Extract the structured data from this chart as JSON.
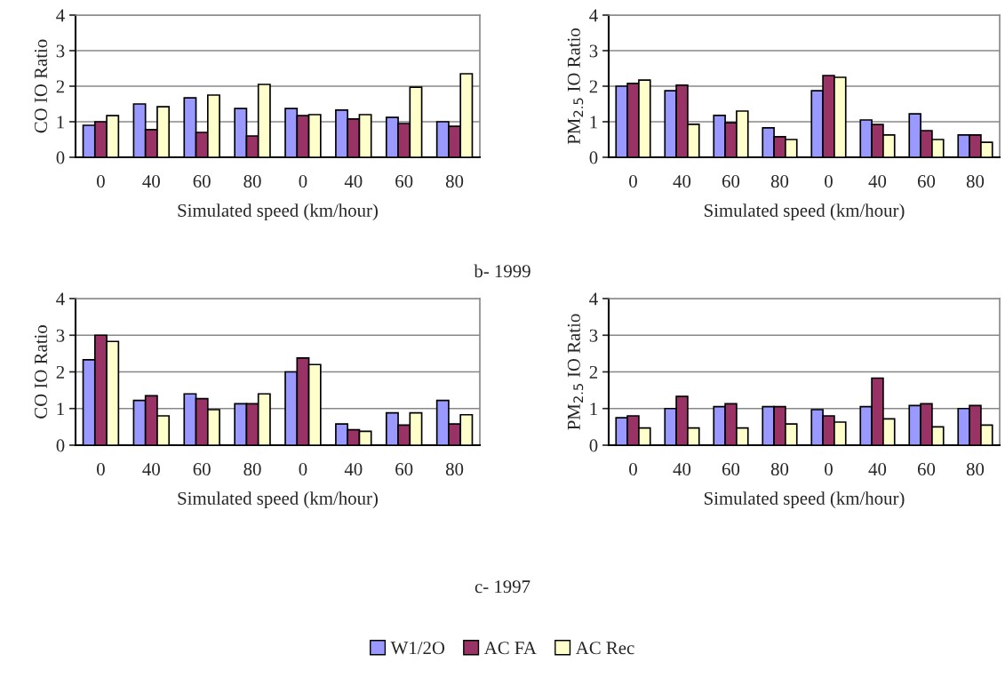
{
  "chart_data": [
    {
      "type": "bar",
      "categories": [
        "0",
        "40",
        "60",
        "80",
        "0",
        "40",
        "60",
        "80"
      ],
      "xlabel": "Simulated speed (km/hour)",
      "ylabel": "CO IO Ratio",
      "ylim": [
        0,
        4
      ],
      "yticks": [
        0,
        1,
        2,
        3,
        4
      ],
      "grid": "y",
      "legend": "bottom",
      "series": [
        {
          "name": "W1/2O",
          "color": "#9999ff",
          "values": [
            0.9,
            1.5,
            1.67,
            1.37,
            1.37,
            1.33,
            1.12,
            1.0
          ]
        },
        {
          "name": "AC FA",
          "color": "#993366",
          "values": [
            1.0,
            0.78,
            0.7,
            0.6,
            1.17,
            1.08,
            0.95,
            0.87
          ]
        },
        {
          "name": "AC Rec",
          "color": "#ffffcc",
          "values": [
            1.17,
            1.42,
            1.75,
            2.05,
            1.2,
            1.2,
            1.97,
            2.35
          ]
        }
      ]
    },
    {
      "type": "bar",
      "categories": [
        "0",
        "40",
        "60",
        "80",
        "0",
        "40",
        "60",
        "80"
      ],
      "xlabel": "Simulated speed (km/hour)",
      "ylabel": "PM$_{2.5}$ IO Ratio",
      "ylim": [
        0,
        4
      ],
      "yticks": [
        0,
        1,
        2,
        3,
        4
      ],
      "grid": "y",
      "annotations": [
        "b- 1999"
      ],
      "series": [
        {
          "color": "#9999ff",
          "values": [
            2.0,
            1.87,
            1.18,
            0.83,
            1.87,
            1.05,
            1.22,
            0.63
          ]
        },
        {
          "color": "#993366",
          "values": [
            2.08,
            2.03,
            0.97,
            0.58,
            2.3,
            0.92,
            0.75,
            0.63
          ]
        },
        {
          "color": "#ffffcc",
          "values": [
            2.17,
            0.93,
            1.3,
            0.5,
            2.25,
            0.63,
            0.5,
            0.42
          ]
        }
      ]
    },
    {
      "type": "bar",
      "categories": [
        "0",
        "40",
        "60",
        "80",
        "0",
        "40",
        "60",
        "80"
      ],
      "xlabel": "Simulated speed (km/hour)",
      "ylabel": "CO IO Ratio",
      "ylim": [
        0,
        4
      ],
      "yticks": [
        0,
        1,
        2,
        3,
        4
      ],
      "grid": "y",
      "series": [
        {
          "color": "#9999ff",
          "values": [
            2.33,
            1.22,
            1.4,
            1.13,
            2.0,
            0.58,
            0.88,
            1.22
          ]
        },
        {
          "color": "#993366",
          "values": [
            3.0,
            1.35,
            1.27,
            1.13,
            2.38,
            0.42,
            0.55,
            0.58
          ]
        },
        {
          "color": "#ffffcc",
          "values": [
            2.83,
            0.8,
            0.97,
            1.4,
            2.2,
            0.38,
            0.88,
            0.83
          ]
        }
      ]
    },
    {
      "type": "bar",
      "categories": [
        "0",
        "40",
        "60",
        "80",
        "0",
        "40",
        "60",
        "80"
      ],
      "xlabel": "Simulated speed (km/hour)",
      "ylabel": "PM$_{2.5}$ IO Ratio",
      "ylim": [
        0,
        4
      ],
      "yticks": [
        0,
        1,
        2,
        3,
        4
      ],
      "grid": "y",
      "annotations": [
        "c- 1997"
      ],
      "series": [
        {
          "color": "#9999ff",
          "values": [
            0.75,
            1.0,
            1.05,
            1.05,
            0.97,
            1.05,
            1.08,
            1.0
          ]
        },
        {
          "color": "#993366",
          "values": [
            0.8,
            1.33,
            1.13,
            1.05,
            0.8,
            1.83,
            1.13,
            1.08
          ]
        },
        {
          "color": "#ffffcc",
          "values": [
            0.47,
            0.47,
            0.47,
            0.58,
            0.63,
            0.72,
            0.5,
            0.55
          ]
        }
      ]
    }
  ]
}
